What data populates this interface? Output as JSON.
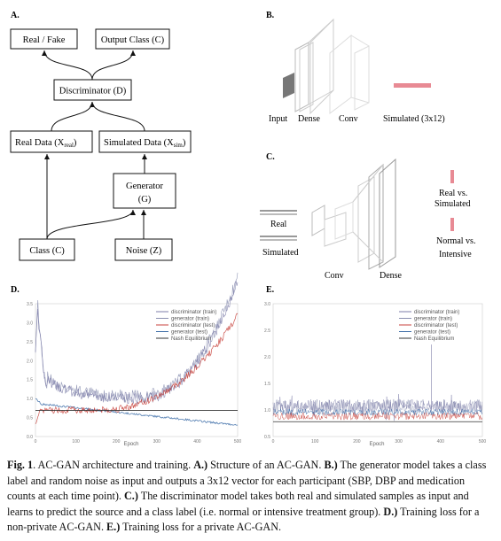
{
  "panelA": {
    "label": "A.",
    "real_fake": "Real / Fake",
    "output_class": "Output Class (C)",
    "discriminator": "Discriminator (D)",
    "real_data": "Real Data (X",
    "real_data_sub": "real",
    "simulated_data": "Simulated Data (X",
    "simulated_data_sub": "sim",
    "generator_line1": "Generator",
    "generator_line2": "(G)",
    "class": "Class (C)",
    "noise": "Noise (Z)"
  },
  "panelB": {
    "label": "B.",
    "input": "Input",
    "dense": "Dense",
    "conv": "Conv",
    "simulated": "Simulated (3x12)"
  },
  "panelC": {
    "label": "C.",
    "real": "Real",
    "simulated": "Simulated",
    "conv": "Conv",
    "dense": "Dense",
    "out1_line1": "Real vs.",
    "out1_line2": "Simulated",
    "out2_line1": "Normal vs.",
    "out2_line2": "Intensive"
  },
  "panelD": {
    "label": "D.",
    "xlabel": "Epoch",
    "yticks": [
      "3.5",
      "3.0",
      "2.5",
      "2.0",
      "1.5",
      "1.0",
      "0.5",
      "0.0"
    ],
    "xticks": [
      "0",
      "100",
      "200",
      "300",
      "400",
      "500"
    ],
    "legend": [
      "discriminator (train)",
      "generator (train)",
      "discriminator (test)",
      "generator (test)",
      "Nash Equilibrium"
    ]
  },
  "panelE": {
    "label": "E.",
    "xlabel": "Epoch",
    "yticks": [
      "3.0",
      "2.5",
      "2.0",
      "1.5",
      "1.0",
      "0.5"
    ],
    "xticks": [
      "0",
      "100",
      "200",
      "300",
      "400",
      "500"
    ],
    "legend": [
      "discriminator (train)",
      "generator (train)",
      "discriminator (test)",
      "generator (test)",
      "Nash Equilibrium"
    ]
  },
  "colors": {
    "disc_train": "#7c7ca8",
    "gen_train": "#8a8fb0",
    "disc_test": "#c8423c",
    "gen_test": "#3f6fa8",
    "nash": "#333333",
    "pink": "#e88a94"
  },
  "caption": {
    "fig": "Fig. 1",
    "intro": ". AC-GAN architecture and training. ",
    "a_label": "A.)",
    "a_text": " Structure of an AC-GAN. ",
    "b_label": "B.)",
    "b_text": " The generator model takes a class label and random noise as input and outputs a 3x12 vector for each participant (SBP, DBP and medication counts at each time point). ",
    "c_label": "C.)",
    "c_text": " The discriminator model takes both real and simulated samples as input and learns to predict the source and a class label (i.e. normal or intensive treatment group). ",
    "d_label": "D.)",
    "d_text": " Training loss for a non-private AC-GAN. ",
    "e_label": "E.)",
    "e_text": " Training loss for a private AC-GAN."
  }
}
